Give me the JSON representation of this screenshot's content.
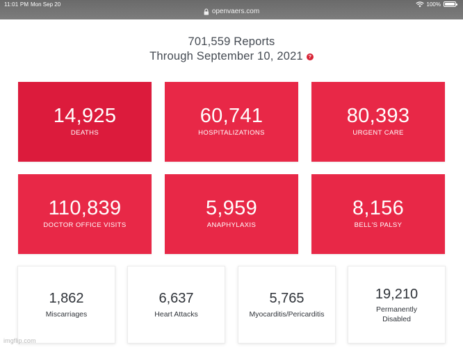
{
  "status_bar": {
    "time": "11:01 PM",
    "date": "Mon Sep 20",
    "battery_percent": "100%",
    "wifi_icon": "wifi-icon",
    "battery_icon": "battery-icon"
  },
  "browser": {
    "url": "openvaers.com",
    "lock_icon": "lock-icon"
  },
  "header": {
    "reports_line": "701,559 Reports",
    "through_line": "Through September 10, 2021",
    "help_glyph": "?",
    "help_icon": "help-icon"
  },
  "red_stats": [
    {
      "value": "14,925",
      "label": "DEATHS"
    },
    {
      "value": "60,741",
      "label": "HOSPITALIZATIONS"
    },
    {
      "value": "80,393",
      "label": "URGENT CARE"
    },
    {
      "value": "110,839",
      "label": "DOCTOR OFFICE VISITS"
    },
    {
      "value": "5,959",
      "label": "ANAPHYLAXIS"
    },
    {
      "value": "8,156",
      "label": "BELL'S PALSY"
    }
  ],
  "white_stats": [
    {
      "value": "1,862",
      "label": "Miscarriages"
    },
    {
      "value": "6,637",
      "label": "Heart Attacks"
    },
    {
      "value": "5,765",
      "label": "Myocarditis/Pericarditis"
    },
    {
      "value": "19,210",
      "label": "Permanently Disabled"
    }
  ],
  "watermark": "imgflip.com",
  "colors": {
    "status_bar": "#737373",
    "card_red": "#e82847",
    "card_red_dark": "#dc1b3c",
    "help_red": "#d82335",
    "text_dark": "#2e3238",
    "header_text": "#444a52"
  }
}
